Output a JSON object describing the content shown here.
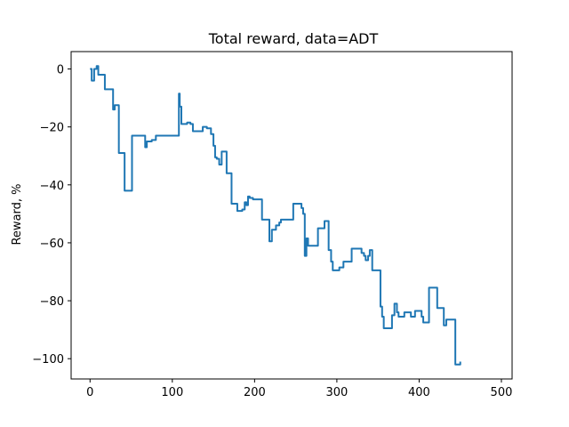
{
  "chart_data": {
    "type": "line",
    "title": "Total reward, data=ADT",
    "xlabel": "",
    "ylabel": "Reward, %",
    "xlim": [
      -23,
      513
    ],
    "ylim": [
      -107,
      6
    ],
    "xticks": [
      0,
      100,
      200,
      300,
      400,
      500
    ],
    "yticks": [
      0,
      -20,
      -40,
      -60,
      -80,
      -100
    ],
    "grid": false,
    "colors": {
      "series": "#1f77b4"
    },
    "series": [
      {
        "step": "post",
        "points": [
          [
            0,
            0
          ],
          [
            2,
            -4
          ],
          [
            5,
            0
          ],
          [
            8,
            1
          ],
          [
            10,
            -2
          ],
          [
            15,
            -2
          ],
          [
            18,
            -7
          ],
          [
            25,
            -7
          ],
          [
            28,
            -14
          ],
          [
            30,
            -12.5
          ],
          [
            33,
            -12.5
          ],
          [
            35,
            -29
          ],
          [
            40,
            -29
          ],
          [
            42,
            -42
          ],
          [
            50,
            -42
          ],
          [
            51,
            -23
          ],
          [
            65,
            -23
          ],
          [
            67,
            -27
          ],
          [
            69,
            -25
          ],
          [
            75,
            -24.5
          ],
          [
            80,
            -23
          ],
          [
            107,
            -23
          ],
          [
            108,
            -8.5
          ],
          [
            109,
            -13
          ],
          [
            111,
            -19
          ],
          [
            115,
            -19
          ],
          [
            118,
            -18.5
          ],
          [
            122,
            -19
          ],
          [
            125,
            -21.5
          ],
          [
            130,
            -21.5
          ],
          [
            135,
            -21.5
          ],
          [
            137,
            -20
          ],
          [
            140,
            -20
          ],
          [
            142,
            -20.5
          ],
          [
            145,
            -20.5
          ],
          [
            147,
            -22.5
          ],
          [
            150,
            -26.5
          ],
          [
            152,
            -30.5
          ],
          [
            154,
            -31
          ],
          [
            157,
            -33
          ],
          [
            160,
            -28.5
          ],
          [
            163,
            -28.5
          ],
          [
            166,
            -36
          ],
          [
            170,
            -36
          ],
          [
            172,
            -46.5
          ],
          [
            176,
            -46.5
          ],
          [
            179,
            -49
          ],
          [
            185,
            -48.5
          ],
          [
            188,
            -46
          ],
          [
            190,
            -47
          ],
          [
            192,
            -44
          ],
          [
            194,
            -44.5
          ],
          [
            196,
            -44.5
          ],
          [
            198,
            -45
          ],
          [
            206,
            -45
          ],
          [
            209,
            -52
          ],
          [
            215,
            -52
          ],
          [
            218,
            -59.5
          ],
          [
            221,
            -55.5
          ],
          [
            224,
            -55.5
          ],
          [
            226,
            -54
          ],
          [
            228,
            -54
          ],
          [
            230,
            -53
          ],
          [
            232,
            -52
          ],
          [
            245,
            -52
          ],
          [
            247,
            -46.5
          ],
          [
            255,
            -46.5
          ],
          [
            257,
            -48
          ],
          [
            259,
            -50
          ],
          [
            261,
            -64.5
          ],
          [
            263,
            -58.5
          ],
          [
            265,
            -61
          ],
          [
            270,
            -61
          ],
          [
            275,
            -61
          ],
          [
            277,
            -55
          ],
          [
            283,
            -55
          ],
          [
            285,
            -52.5
          ],
          [
            287,
            -52.5
          ],
          [
            290,
            -62.5
          ],
          [
            293,
            -66.5
          ],
          [
            295,
            -69.5
          ],
          [
            300,
            -69.5
          ],
          [
            303,
            -68.5
          ],
          [
            305,
            -68.5
          ],
          [
            308,
            -66.5
          ],
          [
            315,
            -66.5
          ],
          [
            318,
            -62
          ],
          [
            325,
            -62
          ],
          [
            330,
            -63.5
          ],
          [
            333,
            -64.5
          ],
          [
            335,
            -66
          ],
          [
            338,
            -64.5
          ],
          [
            340,
            -62.5
          ],
          [
            343,
            -69.5
          ],
          [
            345,
            -69.5
          ],
          [
            348,
            -69.5
          ],
          [
            353,
            -82
          ],
          [
            355,
            -85.5
          ],
          [
            357,
            -89.5
          ],
          [
            360,
            -89.5
          ],
          [
            365,
            -89.5
          ],
          [
            367,
            -85
          ],
          [
            370,
            -81
          ],
          [
            373,
            -84
          ],
          [
            375,
            -85.5
          ],
          [
            380,
            -85.5
          ],
          [
            382,
            -84
          ],
          [
            385,
            -84
          ],
          [
            390,
            -85.5
          ],
          [
            395,
            -83.5
          ],
          [
            400,
            -83.5
          ],
          [
            403,
            -85.5
          ],
          [
            405,
            -87.5
          ],
          [
            410,
            -87.5
          ],
          [
            412,
            -75.5
          ],
          [
            420,
            -75.5
          ],
          [
            422,
            -82.5
          ],
          [
            428,
            -82.5
          ],
          [
            430,
            -88.5
          ],
          [
            433,
            -86.5
          ],
          [
            435,
            -86.5
          ],
          [
            440,
            -86.5
          ],
          [
            444,
            -102
          ],
          [
            448,
            -102
          ],
          [
            450,
            -101
          ]
        ]
      }
    ]
  }
}
